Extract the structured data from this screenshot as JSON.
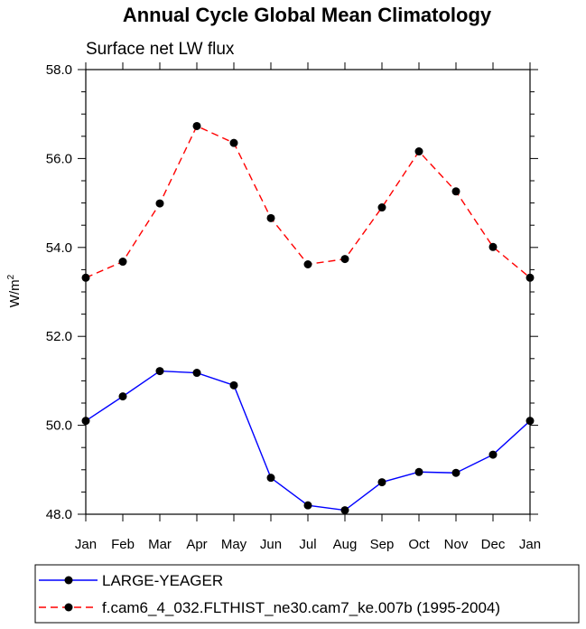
{
  "chart_data": {
    "type": "line",
    "title": "Annual Cycle Global Mean Climatology",
    "subtitle": "Surface net LW flux",
    "ylabel": "W/m",
    "ylabel_superscript": "2",
    "categories": [
      "Jan",
      "Feb",
      "Mar",
      "Apr",
      "May",
      "Jun",
      "Jul",
      "Aug",
      "Sep",
      "Oct",
      "Nov",
      "Dec",
      "Jan"
    ],
    "ylim": [
      48.0,
      58.0
    ],
    "yticks": [
      "48.0",
      "50.0",
      "52.0",
      "54.0",
      "56.0",
      "58.0"
    ],
    "series": [
      {
        "name": "LARGE-YEAGER",
        "color": "#0000ff",
        "dash": "solid",
        "values": [
          50.1,
          50.65,
          51.22,
          51.18,
          50.9,
          48.82,
          48.2,
          48.09,
          48.72,
          48.95,
          48.93,
          49.34,
          50.1
        ]
      },
      {
        "name": "f.cam6_4_032.FLTHIST_ne30.cam7_ke.007b (1995-2004)",
        "color": "#ff0000",
        "dash": "dashed",
        "values": [
          53.32,
          53.68,
          54.99,
          56.73,
          56.35,
          54.66,
          53.62,
          53.74,
          54.9,
          56.16,
          55.26,
          54.01,
          53.32
        ]
      }
    ]
  }
}
